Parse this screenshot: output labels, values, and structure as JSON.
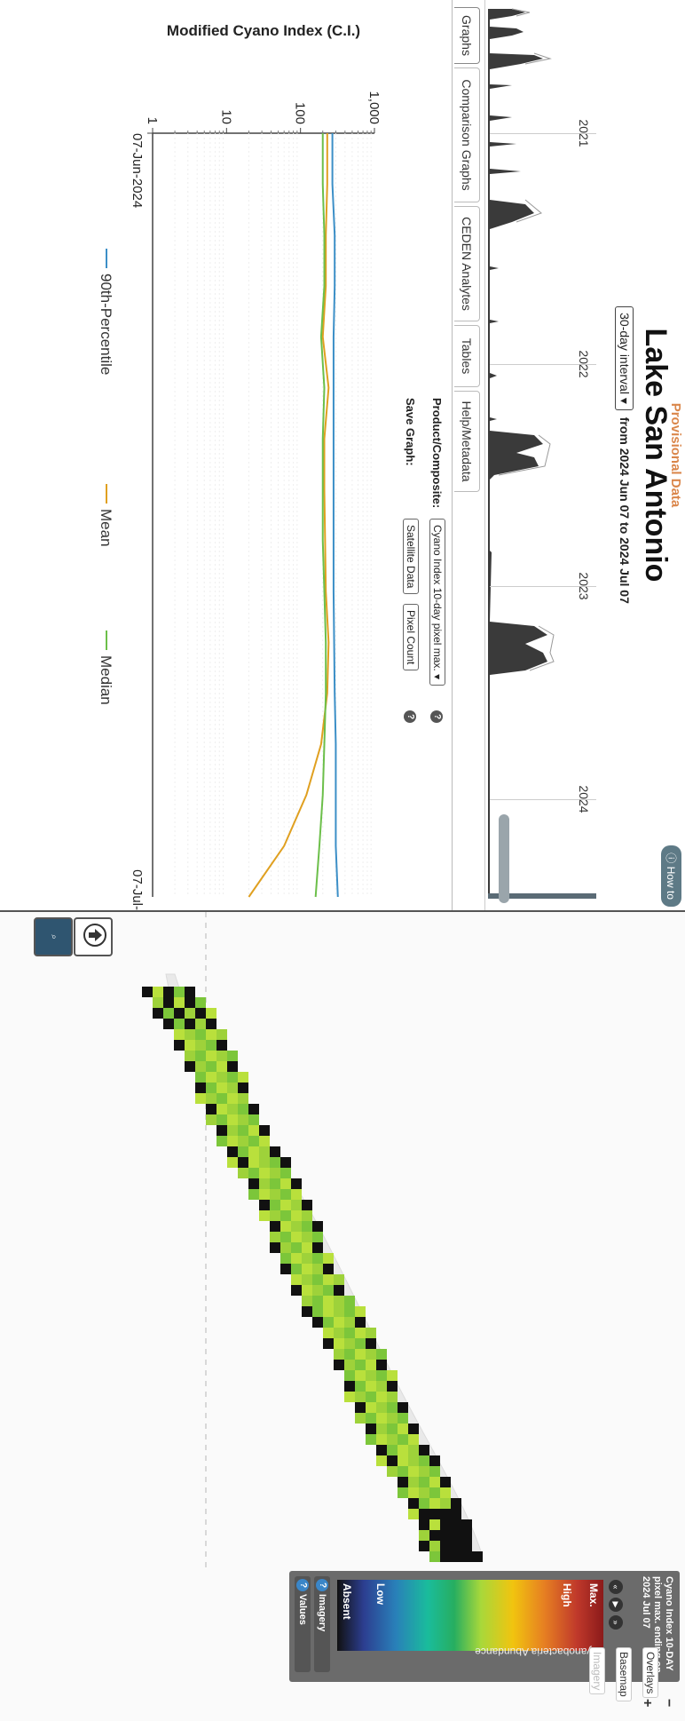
{
  "header": {
    "provisional": "Provisional Data",
    "lake_name": "Lake San Antonio",
    "interval_label": "30-day interval",
    "range_text": "from 2024 Jun 07 to 2024 Jul 07",
    "how_to": "How to"
  },
  "timeline": {
    "years": [
      "2021",
      "2022",
      "2023",
      "2024"
    ]
  },
  "tabs": [
    {
      "label": "Graphs"
    },
    {
      "label": "Comparison Graphs"
    },
    {
      "label": "CEDEN Analytes"
    },
    {
      "label": "Tables"
    },
    {
      "label": "Help/Metadata"
    }
  ],
  "controls": {
    "product_label": "Product/Composite:",
    "product_value": "Cyano Index 10-day pixel max.",
    "save_label": "Save Graph:",
    "save_satellite": "Satellite Data",
    "save_pixel": "Pixel Count",
    "help": "?"
  },
  "chart_data": {
    "type": "line",
    "ylabel": "Modified Cyano Index (C.I.)",
    "yscale": "log",
    "ylim": [
      1,
      1000
    ],
    "yticks": [
      "1",
      "10",
      "100",
      "1,000"
    ],
    "x_start_label": "07-Jun-2024",
    "x_end_label": "07-Jul-",
    "x_days": [
      0,
      2,
      4,
      6,
      8,
      10,
      12,
      14,
      16,
      18,
      20,
      22,
      24,
      26,
      28,
      30
    ],
    "series": [
      {
        "name": "90th-Percentile",
        "color": "#3c8fc7",
        "values": [
          270,
          270,
          290,
          290,
          280,
          280,
          280,
          280,
          280,
          280,
          285,
          290,
          300,
          300,
          300,
          320
        ]
      },
      {
        "name": "Mean",
        "color": "#e0a020",
        "values": [
          230,
          230,
          220,
          220,
          200,
          240,
          210,
          210,
          215,
          220,
          240,
          230,
          190,
          120,
          60,
          20
        ]
      },
      {
        "name": "Median",
        "color": "#6cbf4a",
        "values": [
          200,
          200,
          210,
          210,
          190,
          210,
          200,
          200,
          200,
          210,
          220,
          220,
          210,
          200,
          180,
          160
        ]
      }
    ]
  },
  "legend": {
    "title": "Cyano Index 10-DAY pixel max. ending on 2024 Jul 07",
    "max": "Max.",
    "high": "High",
    "low": "Low",
    "absent": "Absent",
    "abundance": "Cyanobacteria Abundance",
    "imagery_btn": "Imagery",
    "values_btn": "Values"
  },
  "map_controls": {
    "zoom_in": "+",
    "zoom_out": "−",
    "basemap": "Basemap",
    "overlays": "Overlays",
    "imagery": "Imagery"
  }
}
